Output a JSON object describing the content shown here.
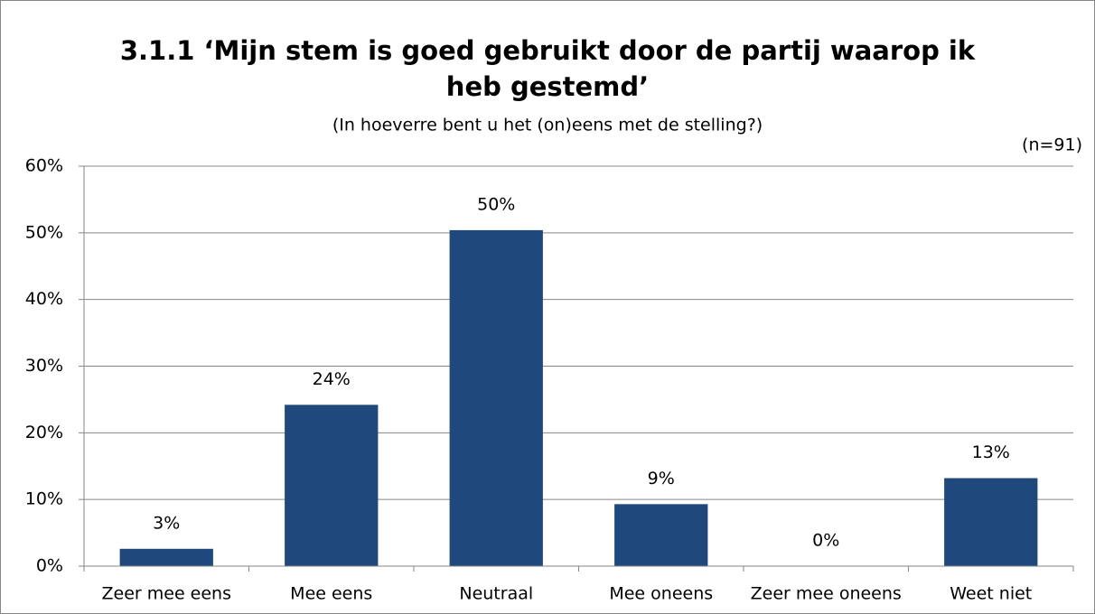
{
  "chart_data": {
    "type": "bar",
    "title": [
      "3.1.1 ‘Mijn stem is goed gebruikt door de partij waarop ik",
      "heb gestemd’"
    ],
    "subtitle": "(In hoeverre bent u het (on)eens met de stelling?)",
    "annotation": "(n=91)",
    "categories": [
      "Zeer mee eens",
      "Mee eens",
      "Neutraal",
      "Mee oneens",
      "Zeer mee oneens",
      "Weet niet"
    ],
    "values": [
      2.6,
      24.2,
      50.4,
      9.3,
      0,
      13.2
    ],
    "value_labels": [
      "3%",
      "24%",
      "50%",
      "9%",
      "0%",
      "13%"
    ],
    "color": "#1f497d",
    "ylim": [
      0,
      60
    ],
    "yticks": [
      {
        "value": 0,
        "label": "0%"
      },
      {
        "value": 10,
        "label": "10%"
      },
      {
        "value": 20,
        "label": "20%"
      },
      {
        "value": 30,
        "label": "30%"
      },
      {
        "value": 40,
        "label": "40%"
      },
      {
        "value": 50,
        "label": "50%"
      },
      {
        "value": 60,
        "label": "60%"
      }
    ],
    "grid": true
  }
}
